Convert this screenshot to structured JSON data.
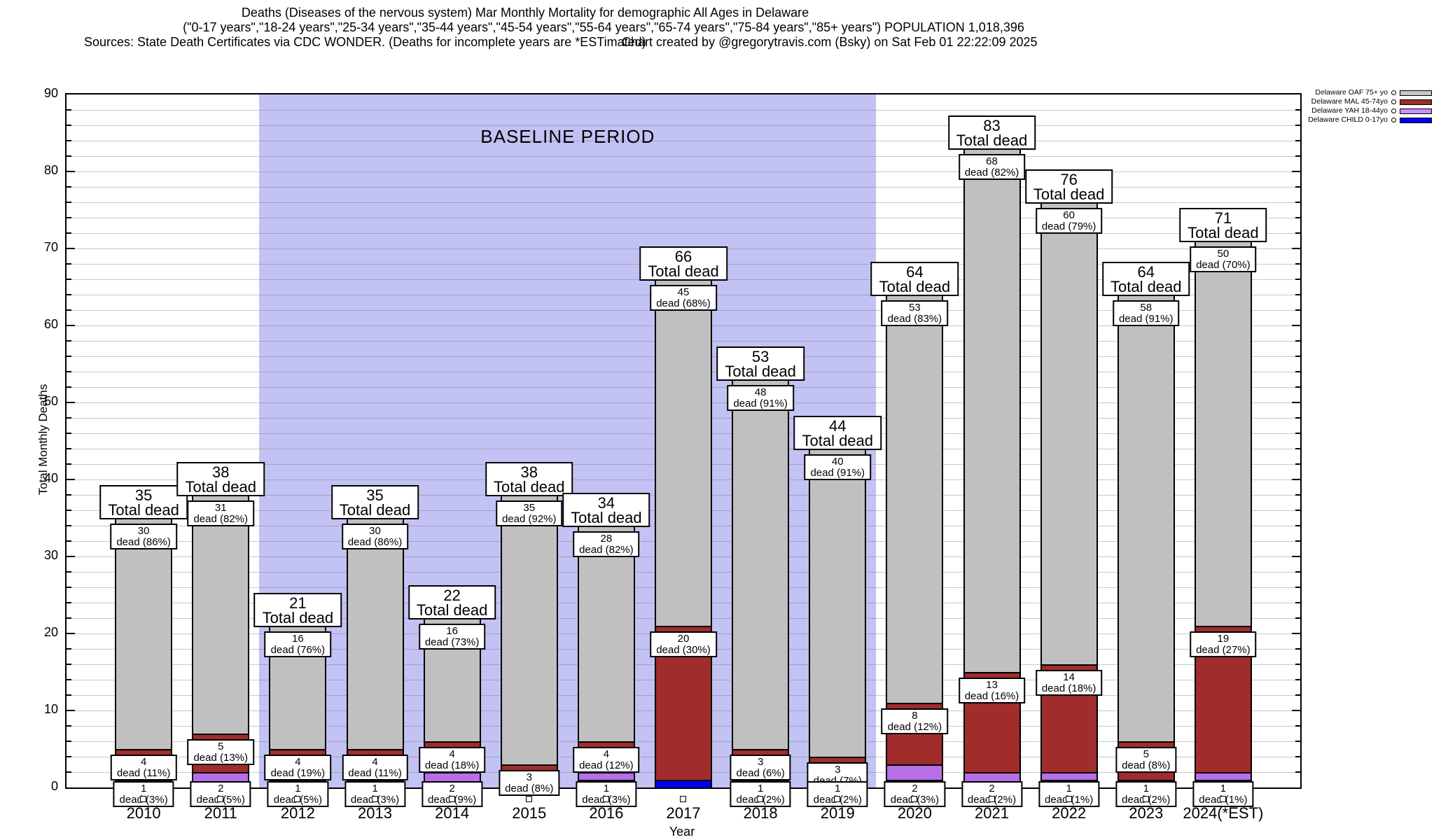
{
  "title": {
    "line1": "Deaths (Diseases of the nervous system) Mar Monthly Mortality for demographic All Ages in Delaware",
    "line2": "(\"0-17 years\",\"18-24 years\",\"25-34 years\",\"35-44 years\",\"45-54 years\",\"55-64 years\",\"65-74 years\",\"75-84 years\",\"85+ years\") POPULATION 1,018,396",
    "line3_left": "Sources: State Death Certificates via CDC WONDER. (Deaths for incomplete years are *ESTimated)",
    "line3_right": "Chart created by @gregorytravis.com (Bsky) on Sat Feb 01 22:22:09 2025"
  },
  "legend": [
    {
      "label": "Delaware OAF 75+ yo",
      "series": "oaf",
      "color": "#c6c6c6"
    },
    {
      "label": "Delaware MAL 45-74yo",
      "series": "mal",
      "color": "#a12c2c"
    },
    {
      "label": "Delaware YAH 18-44yo",
      "series": "yah",
      "color": "#c892f5"
    },
    {
      "label": "Delaware CHILD 0-17yo",
      "series": "child",
      "color": "#0000ee"
    }
  ],
  "chart_data": {
    "type": "bar",
    "stacked": true,
    "title": "Deaths (Diseases of the nervous system) Mar Monthly Mortality for demographic All Ages in Delaware",
    "xlabel": "Year",
    "ylabel": "Total Monthly Deaths",
    "ylim": [
      0,
      90
    ],
    "ytick_major": 10,
    "ytick_minor": 2,
    "grid": true,
    "legend_position": "top-right-outside",
    "total_label": "Total dead",
    "baseline_region": {
      "label": "BASELINE PERIOD",
      "from_index": 1.5,
      "to_index": 9.5,
      "color": "#c2c2f4"
    },
    "series_order": [
      "child",
      "yah",
      "mal",
      "oaf"
    ],
    "series_colors": {
      "child": "#0000ee",
      "yah": "#b76fe8",
      "mal": "#a12c2c",
      "oaf": "#c0c0c0"
    },
    "categories": [
      "2010",
      "2011",
      "2012",
      "2013",
      "2014",
      "2015",
      "2016",
      "2017",
      "2018",
      "2019",
      "2020",
      "2021",
      "2022",
      "2023",
      "2024(*EST)"
    ],
    "years": [
      {
        "x": "2010",
        "total": 35,
        "child": 0,
        "yah": 1,
        "mal": 4,
        "oaf": 30,
        "labels": [
          [
            "oaf",
            "30",
            "dead (86%)"
          ],
          [
            "mal",
            "4",
            "dead (11%)"
          ],
          [
            "bottom",
            "1",
            "dead (3%)"
          ]
        ]
      },
      {
        "x": "2011",
        "total": 38,
        "child": 0,
        "yah": 2,
        "mal": 5,
        "oaf": 31,
        "labels": [
          [
            "oaf",
            "31",
            "dead (82%)"
          ],
          [
            "mal",
            "5",
            "dead (13%)"
          ],
          [
            "bottom",
            "2",
            "dead (5%)"
          ]
        ]
      },
      {
        "x": "2012",
        "total": 21,
        "child": 0,
        "yah": 1,
        "mal": 4,
        "oaf": 16,
        "labels": [
          [
            "oaf",
            "16",
            "dead (76%)"
          ],
          [
            "mal",
            "4",
            "dead (19%)"
          ],
          [
            "bottom",
            "1",
            "dead (5%)"
          ]
        ]
      },
      {
        "x": "2013",
        "total": 35,
        "child": 0,
        "yah": 1,
        "mal": 4,
        "oaf": 30,
        "labels": [
          [
            "oaf",
            "30",
            "dead (86%)"
          ],
          [
            "mal",
            "4",
            "dead (11%)"
          ],
          [
            "bottom",
            "1",
            "dead (3%)"
          ]
        ]
      },
      {
        "x": "2014",
        "total": 22,
        "child": 0,
        "yah": 2,
        "mal": 4,
        "oaf": 16,
        "labels": [
          [
            "oaf",
            "16",
            "dead (73%)"
          ],
          [
            "mal",
            "4",
            "dead (18%)"
          ],
          [
            "bottom",
            "2",
            "dead (9%)"
          ]
        ]
      },
      {
        "x": "2015",
        "total": 38,
        "child": 0,
        "yah": 0,
        "mal": 3,
        "oaf": 35,
        "labels": [
          [
            "oaf",
            "35",
            "dead (92%)"
          ],
          [
            "mal",
            "3",
            "dead (8%)"
          ]
        ]
      },
      {
        "x": "2016",
        "total": 34,
        "child": 1,
        "yah": 1,
        "mal": 4,
        "oaf": 28,
        "labels": [
          [
            "oaf",
            "28",
            "dead (82%)"
          ],
          [
            "mal",
            "4",
            "dead (12%)"
          ],
          [
            "bottom",
            "1",
            "dead (3%)"
          ]
        ]
      },
      {
        "x": "2017",
        "total": 66,
        "child": 1,
        "yah": 0,
        "mal": 20,
        "oaf": 45,
        "labels": [
          [
            "oaf",
            "45",
            "dead (68%)"
          ],
          [
            "mal",
            "20",
            "dead (30%)"
          ]
        ]
      },
      {
        "x": "2018",
        "total": 53,
        "child": 1,
        "yah": 1,
        "mal": 3,
        "oaf": 48,
        "labels": [
          [
            "oaf",
            "48",
            "dead (91%)"
          ],
          [
            "mal",
            "3",
            "dead (6%)"
          ],
          [
            "bottom",
            "1",
            "dead (2%)"
          ]
        ]
      },
      {
        "x": "2019",
        "total": 44,
        "child": 0,
        "yah": 1,
        "mal": 3,
        "oaf": 40,
        "labels": [
          [
            "oaf",
            "40",
            "dead (91%)"
          ],
          [
            "mal",
            "3",
            "dead (7%)"
          ],
          [
            "bottom",
            "1",
            "dead (2%)"
          ]
        ]
      },
      {
        "x": "2020",
        "total": 64,
        "child": 1,
        "yah": 2,
        "mal": 8,
        "oaf": 53,
        "labels": [
          [
            "oaf",
            "53",
            "dead (83%)"
          ],
          [
            "mal",
            "8",
            "dead (12%)"
          ],
          [
            "bottom",
            "2",
            "dead (3%)"
          ]
        ]
      },
      {
        "x": "2021",
        "total": 83,
        "child": 0,
        "yah": 2,
        "mal": 13,
        "oaf": 68,
        "labels": [
          [
            "oaf",
            "68",
            "dead (82%)"
          ],
          [
            "mal",
            "13",
            "dead (16%)"
          ],
          [
            "bottom",
            "2",
            "dead (2%)"
          ]
        ]
      },
      {
        "x": "2022",
        "total": 76,
        "child": 1,
        "yah": 1,
        "mal": 14,
        "oaf": 60,
        "labels": [
          [
            "oaf",
            "60",
            "dead (79%)"
          ],
          [
            "mal",
            "14",
            "dead (18%)"
          ],
          [
            "bottom",
            "1",
            "dead (1%)"
          ]
        ]
      },
      {
        "x": "2023",
        "total": 64,
        "child": 0,
        "yah": 1,
        "mal": 5,
        "oaf": 58,
        "labels": [
          [
            "oaf",
            "58",
            "dead (91%)"
          ],
          [
            "mal",
            "5",
            "dead (8%)"
          ],
          [
            "bottom",
            "1",
            "dead (2%)"
          ]
        ]
      },
      {
        "x": "2024(*EST)",
        "total": 71,
        "child": 1,
        "yah": 1,
        "mal": 19,
        "oaf": 50,
        "labels": [
          [
            "oaf",
            "50",
            "dead (70%)"
          ],
          [
            "mal",
            "19",
            "dead (27%)"
          ],
          [
            "bottom",
            "1",
            "dead (1%)"
          ]
        ]
      }
    ]
  }
}
